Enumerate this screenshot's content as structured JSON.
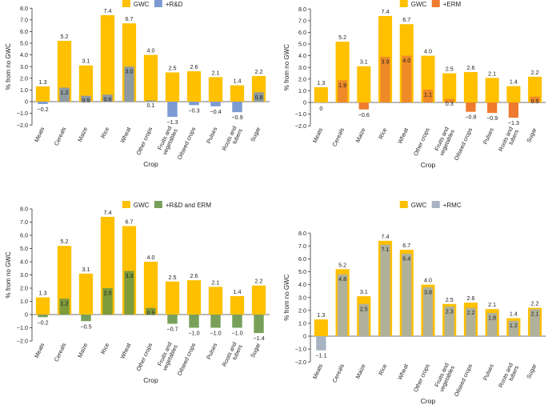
{
  "colors": {
    "gwc": "#FFC000",
    "rd": "#7D9BD3",
    "erm": "#EE7B2E",
    "rd_erm": "#78A05A",
    "rmc": "#A7B3C2",
    "overlap_rd": "#8E9A9F",
    "overlap_erm": "#EE8A27",
    "overlap_rd_erm": "#7F9B3A",
    "overlap_rmc": "#B0B19A"
  },
  "chart_data": [
    {
      "type": "bar",
      "panel": "top-left",
      "categories": [
        "Meats",
        "Cereals",
        "Maize",
        "Rice",
        "Wheat",
        "Other crops",
        "Fruits and vegetables",
        "Oilseed crops",
        "Pulses",
        "Roots and tubers",
        "Sugar"
      ],
      "category_label_lines": [
        [
          "Meats"
        ],
        [
          "Cereals"
        ],
        [
          "Maize"
        ],
        [
          "Rice"
        ],
        [
          "Wheat"
        ],
        [
          "Other crops"
        ],
        [
          "Fruits and",
          "vegetables"
        ],
        [
          "Oilseed crops"
        ],
        [
          "Pulses"
        ],
        [
          "Roots and",
          "tubers"
        ],
        [
          "Sugar"
        ]
      ],
      "series": [
        {
          "name": "GWC",
          "values": [
            1.3,
            5.2,
            3.1,
            7.4,
            6.7,
            4.0,
            2.5,
            2.6,
            2.1,
            1.4,
            2.2
          ],
          "labels": [
            "1.3",
            "5.2",
            "3.1",
            "7.4",
            "6.7",
            "4.0",
            "2.5",
            "2.6",
            "2.1",
            "1.4",
            "2.2"
          ]
        },
        {
          "name": "+R&D",
          "values": [
            -0.2,
            1.2,
            0.5,
            0.6,
            3.0,
            0.1,
            -1.3,
            -0.3,
            -0.4,
            -0.9,
            0.8
          ],
          "labels": [
            "−0.2",
            "1.2",
            "0.5",
            "0.6",
            "3.0",
            "0.1",
            "−1.3",
            "−0.3",
            "−0.4",
            "−0.9",
            "0.8"
          ]
        }
      ],
      "xlabel": "Crop",
      "ylabel": "% from no GWC",
      "ylim": [
        -2.0,
        8.0
      ],
      "yticks": [
        "−2.0",
        "−1.0",
        "0",
        "1.0",
        "2.0",
        "3.0",
        "4.0",
        "5.0",
        "6.0",
        "7.0",
        "8.0"
      ],
      "legend_position": "top"
    },
    {
      "type": "bar",
      "panel": "top-right",
      "categories": [
        "Meats",
        "Cereals",
        "Maize",
        "Rice",
        "Wheat",
        "Other crops",
        "Fruits and vegetables",
        "Oilseed crops",
        "Pulses",
        "Roots and tubers",
        "Sugar"
      ],
      "category_label_lines": [
        [
          "Meats"
        ],
        [
          "Cereals"
        ],
        [
          "Maize"
        ],
        [
          "Rice"
        ],
        [
          "Wheat"
        ],
        [
          "Other crops"
        ],
        [
          "Fruits and",
          "vegetables"
        ],
        [
          "Oilseed crops"
        ],
        [
          "Pulses"
        ],
        [
          "Roots and",
          "tubers"
        ],
        [
          "Sugar"
        ]
      ],
      "series": [
        {
          "name": "GWC",
          "values": [
            1.3,
            5.2,
            3.1,
            7.4,
            6.7,
            4.0,
            2.5,
            2.6,
            2.1,
            1.4,
            2.2
          ],
          "labels": [
            "1.3",
            "5.2",
            "3.1",
            "7.4",
            "6.7",
            "4.0",
            "2.5",
            "2.6",
            "2.1",
            "1.4",
            "2.2"
          ]
        },
        {
          "name": "+ERM",
          "values": [
            0.0,
            1.9,
            -0.6,
            3.9,
            4.0,
            1.1,
            0.3,
            -0.8,
            -0.9,
            -1.3,
            0.5
          ],
          "labels": [
            "0",
            "1.9",
            "−0.6",
            "3.9",
            "4.0",
            "1.1",
            "0.3",
            "−0.8",
            "−0.9",
            "−1.3",
            "0.5"
          ]
        }
      ],
      "xlabel": "Crop",
      "ylabel": "% from no GWC",
      "ylim": [
        -2.0,
        8.0
      ],
      "yticks": [
        "−2.0",
        "−1.0",
        "0",
        "1.0",
        "2.0",
        "3.0",
        "4.0",
        "5.0",
        "6.0",
        "7.0",
        "8.0"
      ],
      "legend_position": "top"
    },
    {
      "type": "bar",
      "panel": "bottom-left",
      "categories": [
        "Meats",
        "Cereals",
        "Maize",
        "Rice",
        "Wheat",
        "Other crops",
        "Fruits and vegetables",
        "Oilseed crops",
        "Pulses",
        "Roots and tubers",
        "Sugar"
      ],
      "category_label_lines": [
        [
          "Meats"
        ],
        [
          "Cereals"
        ],
        [
          "Maize"
        ],
        [
          "Rice"
        ],
        [
          "Wheat"
        ],
        [
          "Other crops"
        ],
        [
          "Fruits and",
          "vegetables"
        ],
        [
          "Oilseed crops"
        ],
        [
          "Pulses"
        ],
        [
          "Roots and",
          "tubers"
        ],
        [
          "Sugar"
        ]
      ],
      "series": [
        {
          "name": "GWC",
          "values": [
            1.3,
            5.2,
            3.1,
            7.4,
            6.7,
            4.0,
            2.5,
            2.6,
            2.1,
            1.4,
            2.2
          ],
          "labels": [
            "1.3",
            "5.2",
            "3.1",
            "7.4",
            "6.7",
            "4.0",
            "2.5",
            "2.6",
            "2.1",
            "1.4",
            "2.2"
          ]
        },
        {
          "name": "+R&D and ERM",
          "values": [
            -0.2,
            1.2,
            -0.5,
            2.0,
            3.3,
            0.5,
            -0.7,
            -1.0,
            -1.0,
            -1.0,
            -1.4
          ],
          "labels": [
            "−0.2",
            "1.2",
            "−0.5",
            "2.0",
            "3.3",
            "0.5",
            "−0.7",
            "−1.0",
            "−1.0",
            "−1.0",
            "−1.4"
          ]
        }
      ],
      "xlabel": "Crop",
      "ylabel": "% from no GWC",
      "ylim": [
        -2.0,
        8.0
      ],
      "yticks": [
        "−2.0",
        "−1.0",
        "0",
        "1.0",
        "2.0",
        "3.0",
        "4.0",
        "5.0",
        "6.0",
        "7.0",
        "8.0"
      ],
      "legend_position": "top"
    },
    {
      "type": "bar",
      "panel": "bottom-right",
      "categories": [
        "Meats",
        "Cereals",
        "Maize",
        "Rice",
        "Wheat",
        "Other crops",
        "Fruits and vegetables",
        "Oilseed crops",
        "Pulses",
        "Roots and tubers",
        "Sugar"
      ],
      "category_label_lines": [
        [
          "Meats"
        ],
        [
          "Cereals"
        ],
        [
          "Maize"
        ],
        [
          "Rice"
        ],
        [
          "Wheat"
        ],
        [
          "Other crops"
        ],
        [
          "Fruits and",
          "vegetables"
        ],
        [
          "Oilseed crops"
        ],
        [
          "Pulses"
        ],
        [
          "Roots and",
          "tubers"
        ],
        [
          "Sugar"
        ]
      ],
      "series": [
        {
          "name": "GWC",
          "values": [
            1.3,
            5.2,
            3.1,
            7.4,
            6.7,
            4.0,
            2.5,
            2.6,
            2.1,
            1.4,
            2.2
          ],
          "labels": [
            "1.3",
            "5.2",
            "3.1",
            "7.4",
            "6.7",
            "4.0",
            "2.5",
            "2.6",
            "2.1",
            "1.4",
            "2.2"
          ]
        },
        {
          "name": "+RMC",
          "values": [
            -1.1,
            4.8,
            2.5,
            7.1,
            6.4,
            3.8,
            2.3,
            2.2,
            1.8,
            1.2,
            2.1
          ],
          "labels": [
            "−1.1",
            "4.8",
            "2.5",
            "7.1",
            "6.4",
            "3.8",
            "2.3",
            "2.2",
            "1.8",
            "1.2",
            "2.1"
          ]
        }
      ],
      "xlabel": "Crop",
      "ylabel": "% from no GWC",
      "ylim": [
        -2.0,
        8.0
      ],
      "yticks": [
        "−2.0",
        "−1.0",
        "0",
        "1.0",
        "2.0",
        "3.0",
        "4.0",
        "5.0",
        "6.0",
        "7.0",
        "8.0"
      ],
      "legend_position": "top"
    }
  ]
}
